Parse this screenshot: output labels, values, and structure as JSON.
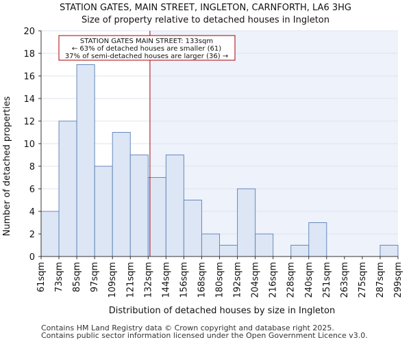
{
  "chart_data": {
    "type": "bar",
    "title": "STATION GATES, MAIN STREET, INGLETON, CARNFORTH, LA6 3HG",
    "subtitle": "Size of property relative to detached houses in Ingleton",
    "xlabel": "Distribution of detached houses by size in Ingleton",
    "ylabel": "Number of detached properties",
    "ylim": [
      0,
      20
    ],
    "yticks": [
      0,
      2,
      4,
      6,
      8,
      10,
      12,
      14,
      16,
      18,
      20
    ],
    "bin_edges": [
      "61sqm",
      "73sqm",
      "85sqm",
      "97sqm",
      "109sqm",
      "121sqm",
      "132sqm",
      "144sqm",
      "156sqm",
      "168sqm",
      "180sqm",
      "192sqm",
      "204sqm",
      "216sqm",
      "228sqm",
      "240sqm",
      "251sqm",
      "263sqm",
      "275sqm",
      "287sqm",
      "299sqm"
    ],
    "values": [
      4,
      12,
      17,
      8,
      11,
      9,
      7,
      9,
      5,
      2,
      1,
      6,
      2,
      0,
      1,
      3,
      0,
      0,
      0,
      1
    ],
    "marker": {
      "value_sqm": 133,
      "bin_position": 6.1,
      "color": "#aa0000",
      "annotation": [
        "STATION GATES MAIN STREET: 133sqm",
        "← 63% of detached houses are smaller (61)",
        "37% of semi-detached houses are larger (36) →"
      ]
    },
    "colors": {
      "bar_fill": "#dce6f5",
      "bar_stroke": "#6688bb",
      "shade_right": "#eef2fb"
    },
    "grid": true
  },
  "footer": {
    "line1": "Contains HM Land Registry data © Crown copyright and database right 2025.",
    "line2": "Contains public sector information licensed under the Open Government Licence v3.0."
  }
}
